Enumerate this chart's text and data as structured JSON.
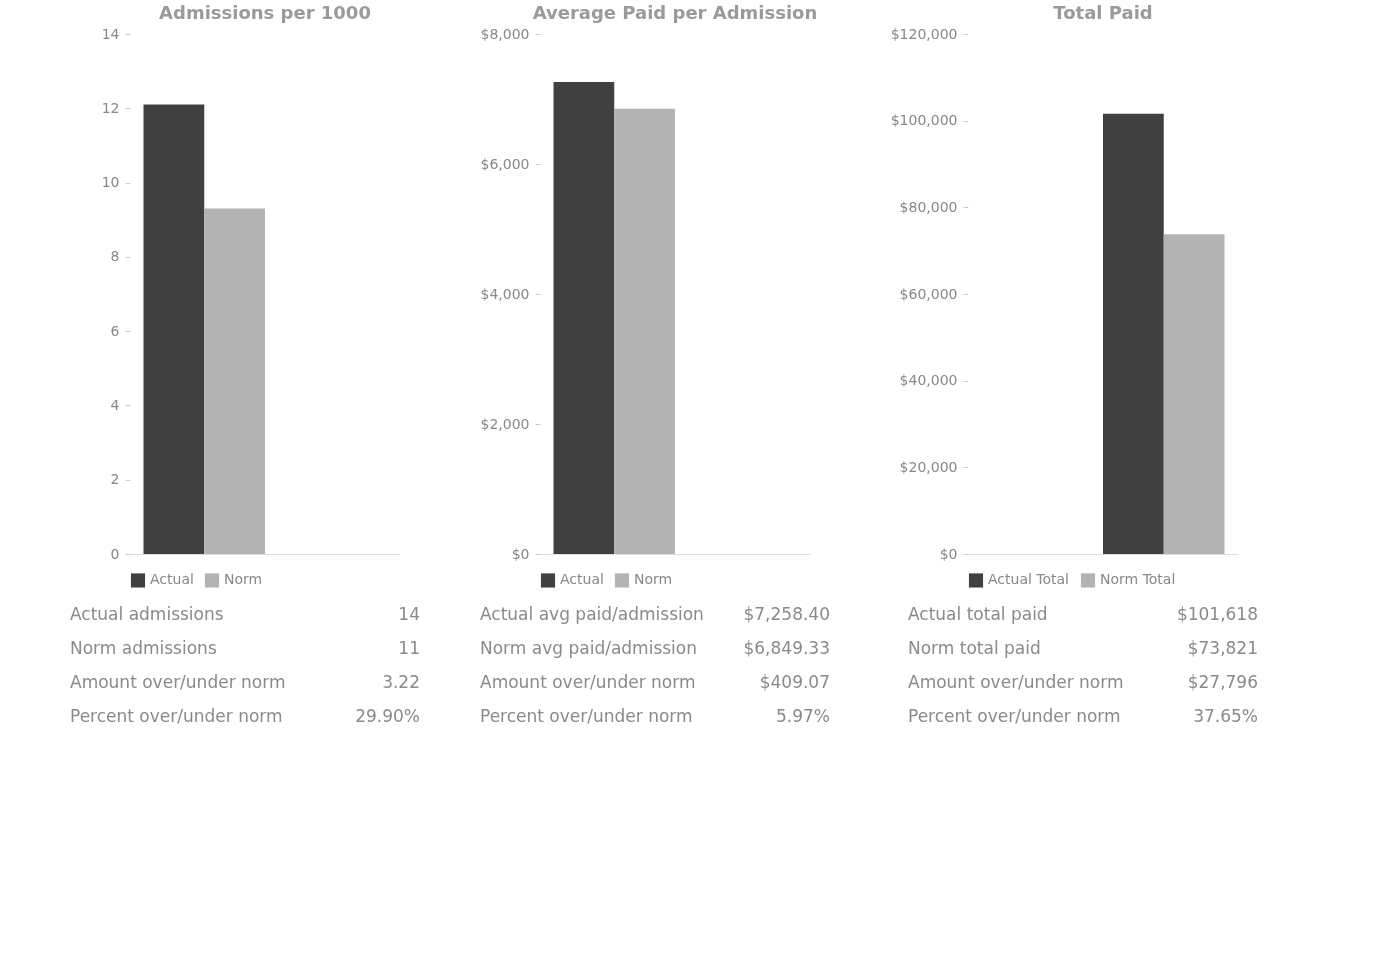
{
  "chart_data": [
    {
      "type": "bar",
      "title": "Admissions per 1000",
      "categories": [
        null
      ],
      "legend": "bottom",
      "grid": false,
      "series": [
        {
          "name": "Actual",
          "color": "#404040",
          "values": [
            12.1
          ]
        },
        {
          "name": "Norm",
          "color": "#b3b3b3",
          "values": [
            9.3
          ]
        }
      ],
      "ylim": [
        0,
        14
      ],
      "yticks": [
        0,
        2,
        4,
        6,
        8,
        10,
        12,
        14
      ],
      "annotations": [
        "Actual admissions",
        "14",
        "Norm admissions",
        "11",
        "Amount over/under norm",
        "3.22",
        "Percent over/under norm",
        "29.90%"
      ]
    },
    {
      "type": "bar",
      "title": "Average Paid per Admission",
      "categories": [
        null
      ],
      "legend": "bottom",
      "grid": false,
      "series": [
        {
          "name": "Actual",
          "color": "#404040",
          "values": [
            7260
          ]
        },
        {
          "name": "Norm",
          "color": "#b3b3b3",
          "values": [
            6850
          ]
        }
      ],
      "ylim": [
        0,
        8000
      ],
      "yticks": [
        {
          "value": 0,
          "label": "$0"
        },
        {
          "value": 2000,
          "label": "$2,000"
        },
        {
          "value": 4000,
          "label": "$4,000"
        },
        {
          "value": 6000,
          "label": "$6,000"
        },
        {
          "value": 8000,
          "label": "$8,000"
        }
      ],
      "annotations": [
        "Actual avg paid/admission",
        "$7,258.40",
        "Norm avg paid/admission",
        "$6,849.33",
        "Amount over/under norm",
        "$409.07",
        "Percent over/under norm",
        "5.97%"
      ]
    },
    {
      "type": "bar",
      "title": "Total Paid",
      "categories": [
        null
      ],
      "legend": "bottom",
      "grid": false,
      "series": [
        {
          "name": "Actual Total",
          "color": "#404040",
          "values": [
            101600
          ]
        },
        {
          "name": "Norm Total",
          "color": "#b3b3b3",
          "values": [
            73800
          ]
        }
      ],
      "ylim": [
        0,
        120000
      ],
      "yticks": [
        {
          "value": 0,
          "label": "$0"
        },
        {
          "value": 20000,
          "label": "$20,000"
        },
        {
          "value": 40000,
          "label": "$40,000"
        },
        {
          "value": 60000,
          "label": "$60,000"
        },
        {
          "value": 80000,
          "label": "$80,000"
        },
        {
          "value": 100000,
          "label": "$100,000"
        },
        {
          "value": 120000,
          "label": "$120,000"
        }
      ],
      "annotations": [
        "Actual total paid",
        "$101,618",
        "Norm total paid",
        "$73,821",
        "Amount over/under norm",
        "$27,796",
        "Percent over/under norm",
        "37.65%"
      ]
    }
  ]
}
